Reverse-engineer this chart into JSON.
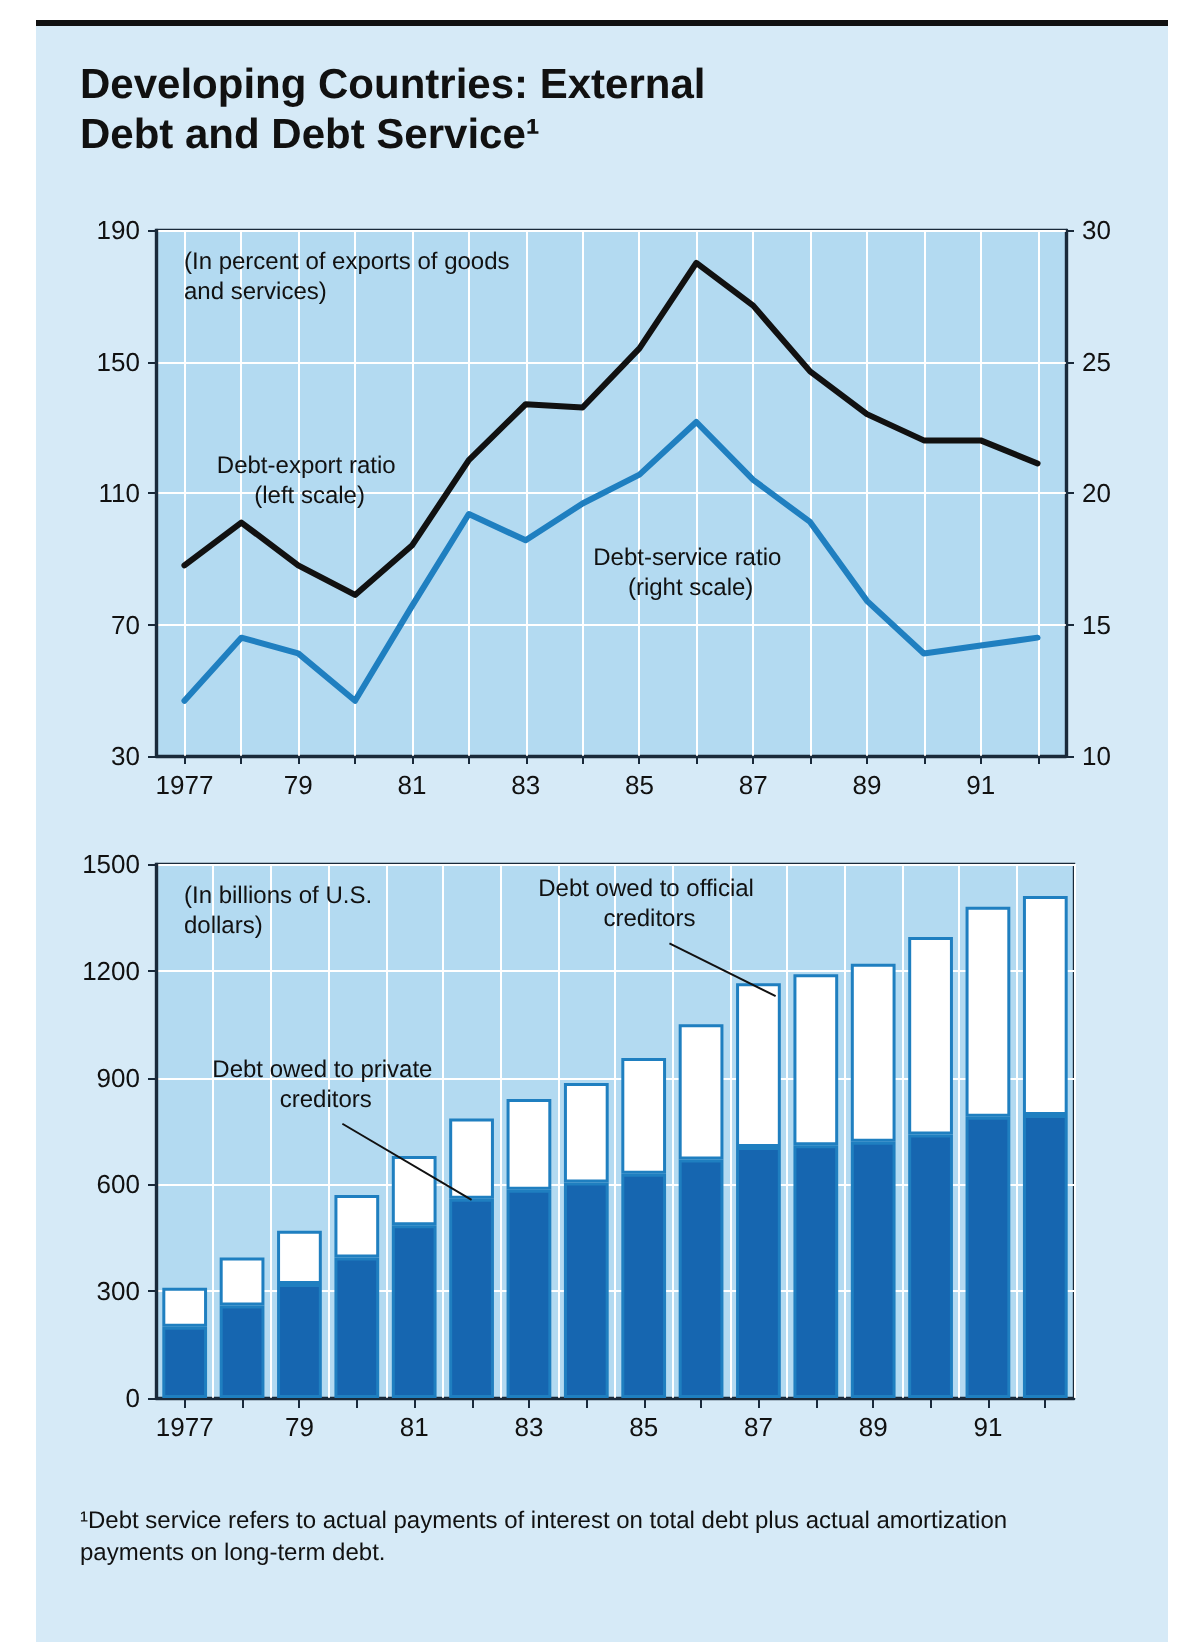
{
  "chart_data": [
    {
      "type": "line",
      "title": "Developing Countries: External Debt and Debt Service¹",
      "annotations": [
        "(In percent of exports of goods and services)"
      ],
      "x": [
        1977,
        1978,
        1979,
        1980,
        1981,
        1982,
        1983,
        1984,
        1985,
        1986,
        1987,
        1988,
        1989,
        1990,
        1991,
        1992
      ],
      "series": [
        {
          "name": "Debt-export ratio (left scale)",
          "color": "#111111",
          "values": [
            88,
            101,
            88,
            79,
            94,
            120,
            137,
            136,
            154,
            180,
            167,
            147,
            134,
            126,
            126,
            119
          ]
        },
        {
          "name": "Debt-service ratio (right scale)",
          "color": "#1f7fc0",
          "axis": "y2",
          "values": [
            12.1,
            14.5,
            13.9,
            12.1,
            15.7,
            19.2,
            18.2,
            19.6,
            20.7,
            22.7,
            20.5,
            18.9,
            15.9,
            13.9,
            14.2,
            14.5
          ]
        }
      ],
      "xlim": [
        1976.5,
        1992.5
      ],
      "xticks": [
        1977,
        {
          "value": 1978,
          "label": null
        },
        {
          "value": 1979,
          "label": "79"
        },
        {
          "value": 1980,
          "label": null
        },
        {
          "value": 1981,
          "label": "81"
        },
        {
          "value": 1982,
          "label": null
        },
        {
          "value": 1983,
          "label": "83"
        },
        {
          "value": 1984,
          "label": null
        },
        {
          "value": 1985,
          "label": "85"
        },
        {
          "value": 1986,
          "label": null
        },
        {
          "value": 1987,
          "label": "87"
        },
        {
          "value": 1988,
          "label": null
        },
        {
          "value": 1989,
          "label": "89"
        },
        {
          "value": 1990,
          "label": null
        },
        {
          "value": 1991,
          "label": "91"
        },
        {
          "value": 1992,
          "label": null
        }
      ],
      "ylim": [
        30,
        190
      ],
      "yticks": [
        30,
        70,
        110,
        150,
        190
      ],
      "y2lim": [
        10,
        30
      ],
      "y2ticks": [
        10,
        15,
        20,
        25,
        30
      ],
      "grid": true,
      "legend": false,
      "marker": "none",
      "line_style": "solid"
    },
    {
      "type": "bar",
      "stacked": true,
      "annotations": [
        "(In billions of U.S. dollars)",
        "¹Debt service refers to actual payments of interest on total debt plus actual amortization payments on long-term debt."
      ],
      "categories": [
        "1977",
        null,
        "79",
        null,
        "81",
        null,
        "83",
        null,
        "85",
        null,
        "87",
        null,
        "89",
        null,
        "91",
        null
      ],
      "series": [
        {
          "name": "Debt owed to private creditors",
          "color": "#1666b0",
          "values": [
            200,
            260,
            320,
            395,
            485,
            560,
            585,
            605,
            630,
            670,
            705,
            710,
            720,
            740,
            790,
            795
          ]
        },
        {
          "name": "Debt owed to official creditors",
          "color": "#ffffff",
          "values": [
            110,
            135,
            150,
            175,
            195,
            225,
            255,
            280,
            325,
            380,
            460,
            480,
            500,
            555,
            590,
            615
          ]
        }
      ],
      "ylim": [
        0,
        1500
      ],
      "yticks": [
        0,
        300,
        600,
        900,
        1200,
        1500
      ],
      "grid": true,
      "legend": false
    }
  ]
}
